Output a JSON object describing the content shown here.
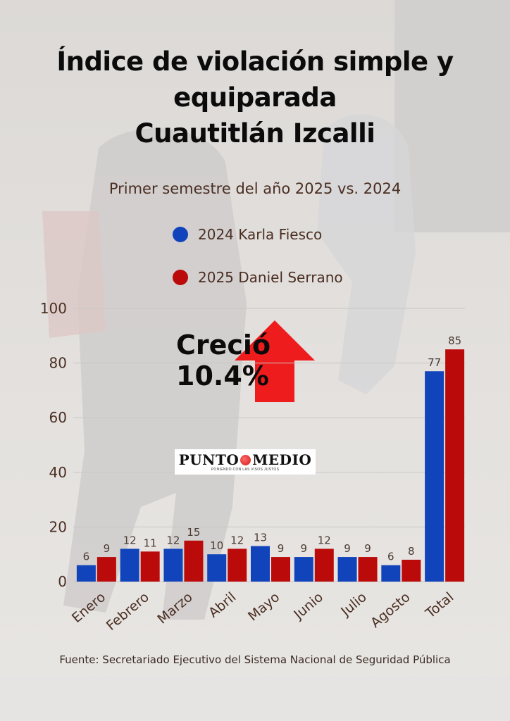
{
  "header": {
    "title_lines": [
      "Índice de violación simple y",
      "equiparada",
      "Cuautitlán Izcalli"
    ],
    "subtitle": "Primer semestre del año 2025 vs. 2024"
  },
  "legend": [
    {
      "label": "2024 Karla Fiesco",
      "color": "#1144bb"
    },
    {
      "label": "2025 Daniel Serrano",
      "color": "#bb0a0a"
    }
  ],
  "annotation": {
    "line1": "Creció",
    "line2": "10.4%",
    "arrow_color": "#ee1c1c",
    "icon": "arrow-up-icon"
  },
  "logo": {
    "name_part1": "PUNTO",
    "name_part2": "MEDIO",
    "tagline": "PONIENDO CON LAS VISOS JUSTOS"
  },
  "source": "Fuente: Secretariado Ejecutivo del Sistema Nacional de Seguridad Pública",
  "chart_data": {
    "type": "bar",
    "categories": [
      "Enero",
      "Febrero",
      "Marzo",
      "Abril",
      "Mayo",
      "Junio",
      "Julio",
      "Agosto",
      "Total"
    ],
    "series": [
      {
        "name": "2024 Karla Fiesco",
        "values": [
          6,
          12,
          12,
          10,
          13,
          9,
          9,
          6,
          77
        ],
        "color": "#1144bb"
      },
      {
        "name": "2025 Daniel Serrano",
        "values": [
          9,
          11,
          15,
          12,
          9,
          12,
          9,
          8,
          85
        ],
        "color": "#bb0a0a"
      }
    ],
    "ylim": [
      0,
      100
    ],
    "yticks": [
      0,
      20,
      40,
      60,
      80,
      100
    ],
    "grid": true,
    "title": "Índice de violación simple y equiparada Cuautitlán Izcalli",
    "xlabel": "",
    "ylabel": ""
  }
}
